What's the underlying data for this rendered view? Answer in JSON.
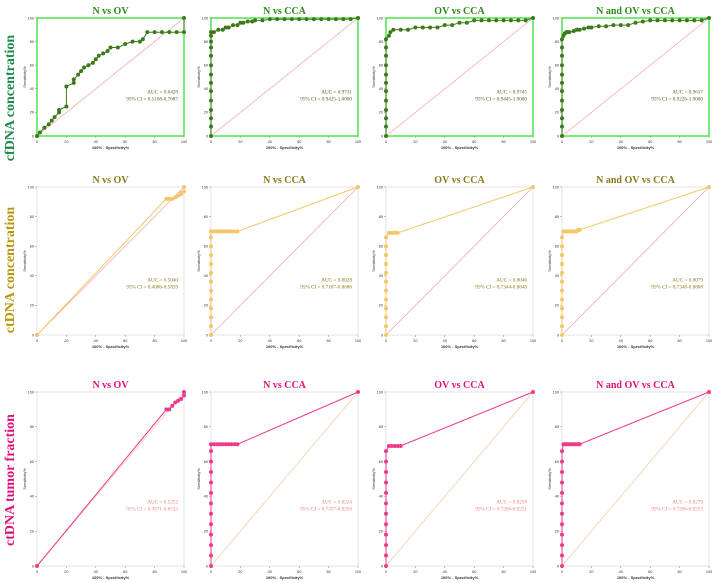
{
  "figure": {
    "row_labels": [
      {
        "text": "cfDNA concentration",
        "color": "#1a8a4a"
      },
      {
        "text": "ctDNA concentration",
        "color": "#b8960c"
      },
      {
        "text": "ctDNA tumor fraction",
        "color": "#e0107a"
      }
    ],
    "xlabel": "100% - Specificity%",
    "ylabel": "Sensitivity%",
    "ticks": [
      "0",
      "20",
      "40",
      "60",
      "80",
      "100"
    ],
    "row_styles": [
      {
        "curve_color": "#3d7a1a",
        "line_color": "#3d7a1a",
        "diag_color": "#f4a0a0",
        "frame_color": "#22dd22",
        "title_color": "#2d8a1a",
        "auc_color": "#4a6a1a"
      },
      {
        "curve_color": "#f5c56a",
        "line_color": "#f5c56a",
        "diag_color": "#f4a0a0",
        "frame_color": "#dddddd",
        "title_color": "#8a7a1a",
        "auc_color": "#8a7a1a"
      },
      {
        "curve_color": "#ee3a8c",
        "line_color": "#ee3a8c",
        "diag_color": "#f4c8a0",
        "frame_color": "#dddddd",
        "title_color": "#e0107a",
        "auc_color": "#f08080"
      }
    ]
  },
  "chart_data": [
    {
      "type": "line",
      "row": 0,
      "col": 0,
      "title": "N vs OV",
      "auc": "AUC = 0.6428",
      "ci": "95% CI = 0.5168-0.7687",
      "xlabel": "100% - Specificity%",
      "ylabel": "Sensitivity%",
      "xlim": [
        0,
        100
      ],
      "ylim": [
        0,
        100
      ],
      "x": [
        0,
        2,
        5,
        8,
        10,
        12,
        15,
        15,
        20,
        20,
        25,
        25,
        28,
        30,
        32,
        35,
        38,
        40,
        42,
        45,
        48,
        50,
        55,
        60,
        65,
        70,
        72,
        75,
        80,
        85,
        90,
        95,
        100,
        100
      ],
      "y": [
        0,
        3,
        7,
        10,
        13,
        16,
        20,
        22,
        25,
        42,
        45,
        48,
        52,
        55,
        58,
        60,
        62,
        65,
        68,
        70,
        72,
        75,
        75,
        78,
        80,
        80,
        82,
        88,
        88,
        88,
        88,
        88,
        88,
        100
      ]
    },
    {
      "type": "line",
      "row": 0,
      "col": 1,
      "title": "N vs CCA",
      "auc": "AUC = 0.9731",
      "ci": "95% CI = 0.9425-1.0000",
      "xlabel": "100% - Specificity%",
      "ylabel": "Sensitivity%",
      "xlim": [
        0,
        100
      ],
      "ylim": [
        0,
        100
      ],
      "x": [
        0,
        0,
        0,
        0,
        0,
        0,
        0,
        0,
        0,
        0,
        0,
        0,
        0,
        0,
        2,
        5,
        8,
        10,
        12,
        15,
        18,
        20,
        22,
        25,
        28,
        30,
        35,
        40,
        45,
        50,
        55,
        60,
        65,
        70,
        75,
        80,
        85,
        90,
        95,
        100
      ],
      "y": [
        0,
        8,
        15,
        22,
        30,
        38,
        45,
        52,
        60,
        68,
        75,
        80,
        85,
        88,
        88,
        90,
        90,
        92,
        92,
        94,
        94,
        96,
        96,
        97,
        97,
        98,
        98,
        99,
        99,
        99,
        99,
        99,
        99,
        99,
        99,
        99,
        99,
        99,
        99,
        100
      ]
    },
    {
      "type": "line",
      "row": 0,
      "col": 2,
      "title": "OV vs CCA",
      "auc": "AUC = 0.9745",
      "ci": "95% CI = 0.9445-1.0000",
      "xlabel": "100% - Specificity%",
      "ylabel": "Sensitivity%",
      "xlim": [
        0,
        100
      ],
      "ylim": [
        0,
        100
      ],
      "x": [
        0,
        0,
        0,
        0,
        0,
        0,
        0,
        0,
        0,
        0,
        0,
        0,
        2,
        3,
        5,
        10,
        15,
        20,
        25,
        30,
        35,
        40,
        45,
        50,
        55,
        60,
        65,
        70,
        75,
        80,
        85,
        90,
        95,
        100
      ],
      "y": [
        0,
        8,
        15,
        22,
        30,
        38,
        45,
        52,
        60,
        68,
        75,
        82,
        85,
        88,
        90,
        90,
        90,
        92,
        92,
        92,
        92,
        94,
        94,
        96,
        96,
        98,
        98,
        98,
        98,
        98,
        98,
        98,
        98,
        100
      ]
    },
    {
      "type": "line",
      "row": 0,
      "col": 3,
      "title": "N and OV vs CCA",
      "auc": "AUC = 0.9617",
      "ci": "95% CI = 0.9226-1.0000",
      "xlabel": "100% - Specificity%",
      "ylabel": "Sensitivity%",
      "xlim": [
        0,
        100
      ],
      "ylim": [
        0,
        100
      ],
      "x": [
        0,
        0,
        0,
        0,
        0,
        0,
        0,
        0,
        0,
        0,
        0,
        0,
        1,
        2,
        3,
        4,
        5,
        8,
        10,
        12,
        15,
        18,
        20,
        25,
        30,
        35,
        40,
        45,
        50,
        55,
        60,
        65,
        70,
        75,
        80,
        85,
        90,
        95,
        100
      ],
      "y": [
        0,
        8,
        15,
        22,
        30,
        38,
        45,
        52,
        60,
        68,
        75,
        82,
        85,
        87,
        88,
        88,
        88,
        89,
        90,
        90,
        91,
        92,
        92,
        93,
        93,
        94,
        94,
        94,
        96,
        97,
        98,
        98,
        98,
        98,
        98,
        98,
        98,
        98,
        100
      ]
    },
    {
      "type": "line",
      "row": 1,
      "col": 0,
      "title": "N vs OV",
      "auc": "AUC = 0.5040",
      "ci": "95% CI = 0.4086-0.5859",
      "xlabel": "100% - Specificity%",
      "ylabel": "Sensitivity%",
      "xlim": [
        0,
        100
      ],
      "ylim": [
        0,
        100
      ],
      "x": [
        0,
        88,
        90,
        92,
        94,
        96,
        98,
        98,
        100,
        100
      ],
      "y": [
        0,
        92,
        92,
        92,
        93,
        94,
        95,
        96,
        97,
        100
      ]
    },
    {
      "type": "line",
      "row": 1,
      "col": 1,
      "title": "N vs CCA",
      "auc": "AUC = 0.8028",
      "ci": "95% CI = 0.7107-0.8686",
      "xlabel": "100% - Specificity%",
      "ylabel": "Sensitivity%",
      "xlim": [
        0,
        100
      ],
      "ylim": [
        0,
        100
      ],
      "x": [
        0,
        0,
        0,
        0,
        0,
        0,
        0,
        0,
        0,
        0,
        0,
        0,
        0,
        2,
        4,
        6,
        8,
        10,
        12,
        14,
        16,
        18,
        100
      ],
      "y": [
        0,
        6,
        12,
        18,
        24,
        30,
        36,
        42,
        48,
        54,
        60,
        66,
        70,
        70,
        70,
        70,
        70,
        70,
        70,
        70,
        70,
        70,
        100
      ]
    },
    {
      "type": "line",
      "row": 1,
      "col": 2,
      "title": "OV vs CCA",
      "auc": "AUC = 0.8046",
      "ci": "95% CI = 0.7344-0.8848",
      "xlabel": "100% - Specificity%",
      "ylabel": "Sensitivity%",
      "xlim": [
        0,
        100
      ],
      "ylim": [
        0,
        100
      ],
      "x": [
        0,
        0,
        0,
        0,
        0,
        0,
        0,
        0,
        0,
        0,
        0,
        0,
        2,
        4,
        6,
        8,
        100
      ],
      "y": [
        0,
        6,
        12,
        18,
        24,
        30,
        36,
        42,
        48,
        54,
        60,
        66,
        69,
        69,
        69,
        69,
        100
      ]
    },
    {
      "type": "line",
      "row": 1,
      "col": 3,
      "title": "N and OV vs CCA",
      "auc": "AUC = 0.8079",
      "ci": "95% CI = 0.7348-0.8808",
      "xlabel": "100% - Specificity%",
      "ylabel": "Sensitivity%",
      "xlim": [
        0,
        100
      ],
      "ylim": [
        0,
        100
      ],
      "x": [
        0,
        0,
        0,
        0,
        0,
        0,
        0,
        0,
        0,
        0,
        0,
        0,
        1,
        2,
        3,
        4,
        5,
        6,
        7,
        8,
        9,
        10,
        11,
        12,
        100
      ],
      "y": [
        0,
        6,
        12,
        18,
        24,
        30,
        36,
        42,
        48,
        54,
        60,
        66,
        70,
        70,
        70,
        70,
        70,
        70,
        70,
        70,
        70,
        70,
        71,
        71,
        100
      ]
    },
    {
      "type": "line",
      "row": 2,
      "col": 0,
      "title": "N vs OV",
      "auc": "AUC = 0.5252",
      "ci": "95% CI = 0.3971-0.6533",
      "xlabel": "100% - Specificity%",
      "ylabel": "Sensitivity%",
      "xlim": [
        0,
        100
      ],
      "ylim": [
        0,
        100
      ],
      "x": [
        0,
        88,
        90,
        92,
        94,
        96,
        98,
        100,
        100
      ],
      "y": [
        0,
        90,
        90,
        92,
        94,
        95,
        96,
        98,
        100
      ]
    },
    {
      "type": "line",
      "row": 2,
      "col": 1,
      "title": "N vs CCA",
      "auc": "AUC = 0.8224",
      "ci": "95% CI = 0.7357-0.9250",
      "xlabel": "100% - Specificity%",
      "ylabel": "Sensitivity%",
      "xlim": [
        0,
        100
      ],
      "ylim": [
        0,
        100
      ],
      "x": [
        0,
        0,
        0,
        0,
        0,
        0,
        0,
        0,
        0,
        0,
        0,
        0,
        0,
        2,
        4,
        6,
        8,
        10,
        12,
        14,
        16,
        18,
        100
      ],
      "y": [
        0,
        6,
        12,
        18,
        24,
        30,
        36,
        42,
        48,
        54,
        60,
        66,
        70,
        70,
        70,
        70,
        70,
        70,
        70,
        70,
        70,
        70,
        100
      ]
    },
    {
      "type": "line",
      "row": 2,
      "col": 2,
      "title": "OV vs CCA",
      "auc": "AUC = 0.8259",
      "ci": "95% CI = 0.7266-0.9251",
      "xlabel": "100% - Specificity%",
      "ylabel": "Sensitivity%",
      "xlim": [
        0,
        100
      ],
      "ylim": [
        0,
        100
      ],
      "x": [
        0,
        0,
        0,
        0,
        0,
        0,
        0,
        0,
        0,
        0,
        0,
        0,
        2,
        4,
        6,
        8,
        10,
        100
      ],
      "y": [
        0,
        6,
        12,
        18,
        24,
        30,
        36,
        42,
        48,
        54,
        60,
        66,
        69,
        69,
        69,
        69,
        69,
        100
      ]
    },
    {
      "type": "line",
      "row": 2,
      "col": 3,
      "title": "N and OV vs CCA",
      "auc": "AUC = 0.8279",
      "ci": "95% CI = 0.7206-0.9253",
      "xlabel": "100% - Specificity%",
      "ylabel": "Sensitivity%",
      "xlim": [
        0,
        100
      ],
      "ylim": [
        0,
        100
      ],
      "x": [
        0,
        0,
        0,
        0,
        0,
        0,
        0,
        0,
        0,
        0,
        0,
        0,
        1,
        2,
        3,
        4,
        5,
        6,
        7,
        8,
        9,
        10,
        11,
        12,
        100
      ],
      "y": [
        0,
        6,
        12,
        18,
        24,
        30,
        36,
        42,
        48,
        54,
        60,
        66,
        70,
        70,
        70,
        70,
        70,
        70,
        70,
        70,
        70,
        70,
        70,
        70,
        100
      ]
    }
  ]
}
